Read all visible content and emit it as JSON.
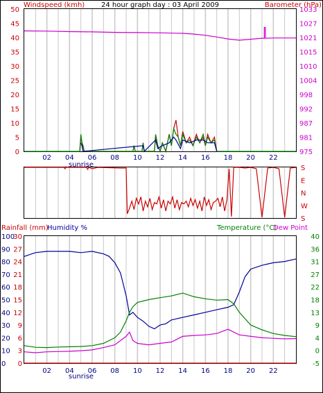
{
  "title": "24 hour graph day : 03 April 2009",
  "colors": {
    "red": "#cc0000",
    "magenta": "#cc00cc",
    "green": "#008000",
    "blue": "#000099",
    "navy": "#000080",
    "grid": "#c8c8c8",
    "border": "#000000"
  },
  "x_ticks": [
    "02",
    "04",
    "06",
    "08",
    "10",
    "12",
    "14",
    "16",
    "18",
    "20",
    "22"
  ],
  "sunrise_label": "sunrise",
  "chart_data": [
    {
      "type": "line",
      "title": "24 hour graph day : 03 April 2009",
      "ylabel": "Windspeed (kmh)",
      "y2label": "Barometer (hPa)",
      "xlim": [
        0,
        24
      ],
      "ylim": [
        0,
        50
      ],
      "y2lim": [
        975,
        1033
      ],
      "yticks": [
        "0",
        "5",
        "10",
        "15",
        "20",
        "25",
        "30",
        "35",
        "40",
        "45",
        "50"
      ],
      "y2ticks": [
        "975",
        "981",
        "987",
        "992",
        "998",
        "1004",
        "1010",
        "1015",
        "1021",
        "1027",
        "1033"
      ],
      "series": [
        {
          "name": "Barometer",
          "color": "#cc00cc",
          "axis": "y2",
          "x": [
            0,
            2,
            4,
            6,
            8,
            10,
            12,
            14,
            15,
            16,
            17,
            18,
            19,
            20,
            21,
            21.2,
            21.2,
            21.3,
            21.3,
            22,
            24
          ],
          "y": [
            1024.1,
            1024,
            1023.8,
            1023.7,
            1023.5,
            1023.4,
            1023.3,
            1023.1,
            1022.8,
            1022.3,
            1021.6,
            1020.8,
            1020.3,
            1020.7,
            1021.1,
            1021.1,
            1025.5,
            1025.5,
            1021.1,
            1021.2,
            1021.2
          ]
        },
        {
          "name": "Gust",
          "color": "#cc0000",
          "axis": "y",
          "x": [
            4.9,
            5.0,
            5.1,
            5.2,
            9.6,
            9.7,
            9.8,
            10.4,
            10.5,
            10.6,
            11.5,
            11.6,
            11.8,
            12.0,
            12.2,
            12.5,
            12.8,
            13.0,
            13.2,
            13.4,
            13.6,
            13.8,
            14.0,
            14.3,
            14.6,
            14.9,
            15.2,
            15.5,
            15.8,
            16.0,
            16.2,
            16.5,
            16.8,
            17.0
          ],
          "y": [
            0,
            5,
            3,
            0,
            0,
            2,
            0,
            0,
            3,
            0,
            0,
            5,
            2,
            0,
            3,
            0,
            6,
            2,
            8,
            11,
            5,
            2,
            7,
            3,
            5,
            2,
            6,
            3,
            5,
            2,
            6,
            3,
            5,
            0
          ]
        },
        {
          "name": "Windspeed",
          "color": "#008000",
          "axis": "y",
          "x": [
            0,
            4.9,
            5.0,
            5.1,
            5.2,
            5.3,
            9.6,
            9.7,
            9.8,
            10.4,
            10.5,
            10.6,
            11.5,
            11.6,
            11.8,
            12.0,
            12.2,
            12.5,
            12.8,
            13.0,
            13.2,
            13.4,
            13.6,
            13.8,
            14.0,
            14.3,
            14.6,
            14.9,
            15.2,
            15.5,
            15.8,
            16.0,
            16.2,
            16.5,
            16.8,
            17.0,
            24
          ],
          "y": [
            0,
            0,
            6,
            3,
            2,
            0,
            0,
            2,
            0,
            0,
            3,
            0,
            0,
            6,
            2,
            0,
            3,
            0,
            6,
            2,
            8,
            6,
            5,
            2,
            6,
            3,
            4,
            2,
            5,
            3,
            6,
            2,
            5,
            3,
            4,
            0,
            0
          ]
        },
        {
          "name": "Average",
          "color": "#000099",
          "axis": "y",
          "x": [
            5.0,
            5.1,
            5.2,
            10.5,
            10.6,
            11.6,
            11.8,
            12.2,
            12.8,
            13.2,
            13.4,
            13.8,
            14.0,
            14.6,
            15.2,
            15.8,
            16.2,
            16.8,
            17.0
          ],
          "y": [
            3,
            2,
            0,
            2,
            0,
            4,
            1,
            2,
            3,
            5,
            4,
            1,
            4,
            3,
            4,
            4,
            3,
            3,
            0
          ]
        }
      ]
    },
    {
      "type": "line",
      "y_labels": [
        "S",
        "E",
        "N",
        "W",
        "S"
      ],
      "xlim": [
        0,
        24
      ],
      "series": [
        {
          "name": "Wind direction",
          "color": "#cc0000",
          "x": [
            0,
            3.5,
            3.6,
            3.7,
            5.5,
            5.6,
            5.7,
            6.0,
            6.5,
            8.5,
            9.0,
            9.1,
            9.3,
            9.5,
            9.7,
            9.9,
            10.1,
            10.3,
            10.5,
            10.7,
            10.9,
            11.1,
            11.3,
            11.5,
            11.7,
            11.9,
            12.1,
            12.3,
            12.5,
            12.7,
            12.9,
            13.1,
            13.3,
            13.5,
            13.7,
            13.9,
            14.1,
            14.3,
            14.5,
            14.7,
            14.9,
            15.1,
            15.3,
            15.5,
            15.7,
            15.9,
            16.1,
            16.3,
            16.5,
            16.7,
            16.9,
            17.1,
            17.3,
            17.5,
            17.7,
            17.9,
            18.1,
            18.3,
            18.5,
            19,
            19.5,
            20,
            20.5,
            21,
            21.5,
            22,
            22.5,
            23,
            23.5,
            24
          ],
          "y": [
            180,
            180,
            170,
            180,
            180,
            165,
            180,
            170,
            180,
            175,
            175,
            210,
            250,
            300,
            240,
            320,
            280,
            330,
            230,
            300,
            260,
            320,
            240,
            290,
            280,
            330,
            250,
            310,
            230,
            300,
            280,
            330,
            250,
            310,
            240,
            290,
            280,
            300,
            260,
            320,
            270,
            310,
            250,
            300,
            230,
            330,
            270,
            310,
            240,
            290,
            300,
            320,
            260,
            330,
            230,
            310,
            170,
            190,
            180,
            180,
            175,
            180,
            170,
            185,
            175,
            180,
            170,
            185,
            175,
            180
          ]
        }
      ]
    },
    {
      "type": "line",
      "ylabel": "Rainfall (mm)",
      "ylabel2": "Humidity %",
      "y2label": "Temperature (°C)",
      "y2label2": "Dew Point",
      "xlim": [
        0,
        24
      ],
      "ylim": [
        0,
        100
      ],
      "y2lim": [
        -5,
        40
      ],
      "yticks_humidity": [
        "0",
        "10",
        "20",
        "30",
        "40",
        "50",
        "60",
        "70",
        "80",
        "90",
        "100"
      ],
      "yticks_rain": [
        "0",
        "3",
        "6",
        "9",
        "12",
        "15",
        "18",
        "21",
        "24",
        "27",
        "30"
      ],
      "y2ticks": [
        "-5",
        "0",
        "4",
        "9",
        "13",
        "18",
        "22",
        "27",
        "31",
        "36",
        "40"
      ],
      "series": [
        {
          "name": "Humidity",
          "color": "#000099",
          "axis": "humidity",
          "x": [
            0,
            1,
            2,
            3,
            4,
            5,
            6,
            7,
            7.5,
            8,
            8.5,
            9,
            9.3,
            9.6,
            10,
            10.5,
            11,
            11.5,
            12,
            12.5,
            13,
            14,
            15,
            16,
            17,
            18,
            18.5,
            19,
            19.5,
            20,
            21,
            22,
            23,
            24
          ],
          "y": [
            84,
            87,
            88,
            88,
            88,
            87,
            88,
            86,
            84,
            79,
            71,
            53,
            38,
            40,
            36,
            33,
            29,
            27,
            30,
            31,
            34,
            36,
            38,
            40,
            42,
            44,
            46,
            56,
            68,
            74,
            77,
            79,
            80,
            82
          ]
        },
        {
          "name": "Temperature",
          "color": "#008000",
          "axis": "temp",
          "x": [
            0,
            1,
            2,
            3,
            4,
            5,
            6,
            7,
            8,
            8.5,
            9,
            9.3,
            9.6,
            10,
            11,
            12,
            13,
            14,
            15,
            16,
            17,
            18,
            18.5,
            19,
            20,
            21,
            22,
            23,
            24
          ],
          "y": [
            1.2,
            0.6,
            0.5,
            0.7,
            0.8,
            0.9,
            1.2,
            2.0,
            4.0,
            6.0,
            10.0,
            13.0,
            15.0,
            16.5,
            17.5,
            18.2,
            18.8,
            19.8,
            18.5,
            17.8,
            17.3,
            17.5,
            16.0,
            13.0,
            8.5,
            6.8,
            5.5,
            4.8,
            4.4
          ]
        },
        {
          "name": "Dew Point",
          "color": "#cc00cc",
          "axis": "temp",
          "x": [
            0,
            1,
            2,
            3,
            4,
            5,
            6,
            7,
            8,
            8.5,
            9,
            9.3,
            9.6,
            10,
            11,
            12,
            13,
            14,
            15,
            16,
            17,
            18,
            18.5,
            19,
            20,
            21,
            22,
            23,
            24
          ],
          "y": [
            -1.0,
            -1.3,
            -1.0,
            -0.9,
            -0.8,
            -0.6,
            -0.3,
            0.5,
            1.5,
            3.0,
            4.5,
            6.0,
            3.0,
            2.0,
            1.5,
            2.0,
            2.5,
            4.5,
            4.8,
            5.0,
            5.5,
            7.0,
            6.0,
            5.0,
            4.5,
            4.0,
            3.8,
            3.6,
            3.7
          ]
        },
        {
          "name": "Rainfall",
          "color": "#cc0000",
          "axis": "rain",
          "x": [
            0,
            24
          ],
          "y": [
            0,
            0
          ]
        }
      ]
    }
  ]
}
